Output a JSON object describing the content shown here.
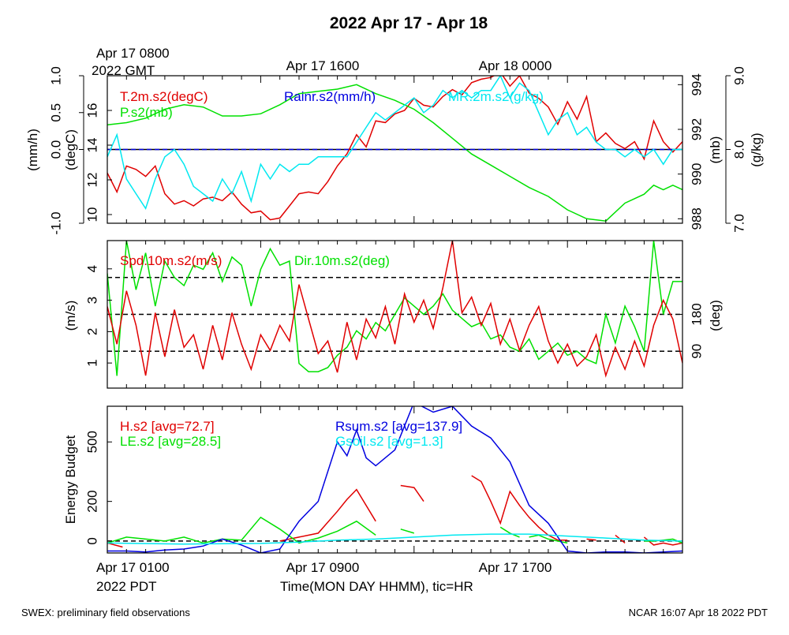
{
  "title": "2022 Apr 17 - Apr 18",
  "colors": {
    "red": "#e00000",
    "green": "#00e000",
    "blue": "#0000e0",
    "cyan": "#00e8f0",
    "black": "#000000"
  },
  "top_time_labels": [
    {
      "lines": [
        "Apr 17 0800",
        "2022 GMT"
      ]
    },
    {
      "lines": [
        "Apr 17 1600"
      ]
    },
    {
      "lines": [
        "Apr 18 0000"
      ]
    }
  ],
  "bottom_time_labels": [
    {
      "lines": [
        "Apr 17 0100",
        "2022 PDT"
      ]
    },
    {
      "lines": [
        "Apr 17 0900"
      ]
    },
    {
      "lines": [
        "Apr 17 1700"
      ]
    }
  ],
  "xaxis_title": "Time(MON DAY HHMM), tic=HR",
  "footer_left": "SWEX: preliminary field observations",
  "footer_right": "NCAR 16:07 Apr 18 2022 PDT",
  "chart_data": [
    {
      "type": "line",
      "panel": "thermo",
      "x_unit": "hours since Apr 17 0100 PDT",
      "xlim": [
        0,
        30
      ],
      "axes": {
        "rain": {
          "label": "(mm/h)",
          "ticks": [
            "-1.0",
            "0.0",
            "0.5",
            "1.0"
          ],
          "range": [
            -1,
            1
          ]
        },
        "temp": {
          "label": "(degC)",
          "ticks": [
            "10",
            "12",
            "14",
            "16"
          ],
          "range": [
            9.5,
            18
          ]
        },
        "pres": {
          "label": "(mb)",
          "ticks": [
            "988",
            "990",
            "992",
            "994"
          ],
          "range": [
            987.8,
            994.4
          ]
        },
        "mr": {
          "label": "(g/kg)",
          "ticks": [
            "7.0",
            "8.0",
            "9.0"
          ],
          "range": [
            7.0,
            9.0
          ]
        }
      },
      "series": [
        {
          "name": "T.2m.s2(degC)",
          "color": "red",
          "axis": "temp",
          "x": [
            0,
            0.5,
            1,
            1.5,
            2,
            2.5,
            3,
            3.5,
            4,
            4.5,
            5,
            5.5,
            6,
            6.5,
            7,
            7.5,
            8,
            8.5,
            9,
            9.5,
            10,
            10.5,
            11,
            11.5,
            12,
            12.5,
            13,
            13.5,
            14,
            14.5,
            15,
            15.5,
            16,
            16.5,
            17,
            17.5,
            18,
            18.5,
            19,
            19.5,
            20,
            20.5,
            21,
            21.5,
            22,
            22.5,
            23,
            23.5,
            24,
            24.5,
            25,
            25.5,
            26,
            26.5,
            27,
            27.5,
            28,
            28.5,
            29,
            29.5,
            30
          ],
          "values": [
            12.4,
            11.3,
            12.8,
            12.6,
            12.2,
            12.8,
            11.2,
            10.6,
            10.8,
            10.5,
            10.9,
            11.0,
            10.8,
            11.3,
            10.6,
            10.1,
            10.2,
            9.7,
            9.8,
            10.5,
            11.2,
            11.3,
            11.2,
            11.9,
            12.8,
            13.5,
            14.6,
            13.9,
            15.4,
            15.3,
            15.8,
            16.0,
            16.7,
            16.3,
            16.2,
            16.8,
            17.2,
            16.9,
            17.6,
            17.8,
            17.9,
            18.2,
            17.4,
            18.0,
            17.0,
            16.7,
            16.2,
            15.2,
            16.5,
            15.5,
            16.8,
            14.2,
            14.7,
            14.1,
            13.8,
            14.2,
            13.2,
            15.4,
            14.2,
            13.6,
            14.2
          ]
        },
        {
          "name": "P.s2(mb)",
          "color": "green",
          "axis": "pres",
          "x": [
            0,
            1,
            2,
            3,
            4,
            5,
            6,
            7,
            8,
            9,
            10,
            11,
            12,
            13,
            14,
            15,
            16,
            17,
            18,
            19,
            20,
            21,
            22,
            23,
            24,
            25,
            26,
            27,
            28,
            28.5,
            29,
            29.5,
            30
          ],
          "values": [
            992.2,
            992.3,
            992.5,
            992.9,
            993.1,
            993.0,
            992.6,
            992.6,
            992.7,
            993.1,
            993.6,
            993.7,
            993.8,
            994.0,
            993.6,
            993.3,
            992.9,
            992.3,
            991.6,
            990.9,
            990.4,
            989.9,
            989.4,
            989.0,
            988.4,
            988.0,
            987.9,
            988.7,
            989.1,
            989.5,
            989.3,
            989.5,
            989.3
          ]
        },
        {
          "name": "Rainr.s2(mm/h)",
          "color": "blue",
          "axis": "rain",
          "x": [
            0,
            30
          ],
          "values": [
            0.0,
            0.0
          ]
        },
        {
          "name": "MR.2m.s2(g/kg)",
          "color": "cyan",
          "axis": "mr",
          "x": [
            0,
            0.5,
            1,
            1.5,
            2,
            2.5,
            3,
            3.5,
            4,
            4.5,
            5,
            5.5,
            6,
            6.5,
            7,
            7.5,
            8,
            8.5,
            9,
            9.5,
            10,
            10.5,
            11,
            11.5,
            12,
            12.5,
            13,
            13.5,
            14,
            14.5,
            15,
            15.5,
            16,
            16.5,
            17,
            17.5,
            18,
            18.5,
            19,
            19.5,
            20,
            20.5,
            21,
            21.5,
            22,
            22.5,
            23,
            23.5,
            24,
            24.5,
            25,
            25.5,
            26,
            26.5,
            27,
            27.5,
            28,
            28.5,
            29,
            29.5,
            30
          ],
          "values": [
            7.9,
            8.2,
            7.6,
            7.4,
            7.2,
            7.6,
            7.9,
            8.0,
            7.8,
            7.5,
            7.4,
            7.3,
            7.6,
            7.4,
            7.7,
            7.3,
            7.8,
            7.6,
            7.8,
            7.7,
            7.8,
            7.8,
            7.9,
            7.9,
            7.9,
            7.9,
            8.1,
            8.3,
            8.5,
            8.4,
            8.5,
            8.6,
            8.7,
            8.5,
            8.6,
            8.8,
            8.7,
            8.8,
            8.7,
            8.8,
            8.8,
            9.0,
            8.7,
            8.9,
            8.8,
            8.5,
            8.2,
            8.4,
            8.5,
            8.2,
            8.3,
            8.1,
            8.0,
            8.0,
            7.9,
            8.0,
            7.9,
            8.0,
            7.8,
            8.0,
            8.0
          ]
        }
      ]
    },
    {
      "type": "line",
      "panel": "wind",
      "x_unit": "hours since Apr 17 0100 PDT",
      "xlim": [
        0,
        30
      ],
      "axes": {
        "spd": {
          "label": "(m/s)",
          "ticks": [
            "1",
            "2",
            "3",
            "4"
          ],
          "range": [
            0.2,
            4.9
          ]
        },
        "dir": {
          "label": "(deg)",
          "ticks": [
            "90",
            "180"
          ],
          "range": [
            0,
            360
          ]
        }
      },
      "reference_lines_deg": [
        90,
        180,
        270
      ],
      "series": [
        {
          "name": "Spd.10m.s2(m/s)",
          "color": "red",
          "axis": "spd",
          "x": [
            0,
            0.5,
            1,
            1.5,
            2,
            2.5,
            3,
            3.5,
            4,
            4.5,
            5,
            5.5,
            6,
            6.5,
            7,
            7.5,
            8,
            8.5,
            9,
            9.5,
            10,
            10.5,
            11,
            11.5,
            12,
            12.5,
            13,
            13.5,
            14,
            14.5,
            15,
            15.5,
            16,
            16.5,
            17,
            17.5,
            18,
            18.5,
            19,
            19.5,
            20,
            20.5,
            21,
            21.5,
            22,
            22.5,
            23,
            23.5,
            24,
            24.5,
            25,
            25.5,
            26,
            26.5,
            27,
            27.5,
            28,
            28.5,
            29,
            29.5,
            30
          ],
          "values": [
            2.8,
            1.6,
            3.3,
            2.2,
            0.6,
            2.6,
            1.2,
            2.7,
            1.5,
            1.9,
            0.8,
            2.2,
            1.1,
            2.6,
            1.6,
            0.8,
            1.9,
            1.4,
            2.2,
            1.7,
            3.5,
            2.4,
            1.3,
            1.7,
            0.7,
            2.3,
            1.1,
            2.4,
            1.8,
            2.8,
            1.6,
            3.2,
            2.3,
            3.0,
            2.1,
            3.4,
            4.9,
            2.6,
            3.1,
            2.2,
            2.9,
            1.6,
            2.4,
            1.4,
            2.2,
            2.8,
            1.7,
            1.0,
            1.6,
            0.9,
            1.2,
            1.9,
            0.6,
            1.5,
            0.8,
            1.7,
            0.9,
            2.2,
            3.0,
            2.4,
            1.0
          ]
        },
        {
          "name": "Dir.10m.s2(deg)",
          "color": "green",
          "axis": "dir",
          "x": [
            0,
            0.5,
            1,
            1.5,
            2,
            2.5,
            3,
            3.5,
            4,
            4.5,
            5,
            5.5,
            6,
            6.5,
            7,
            7.5,
            8,
            8.5,
            9,
            9.5,
            10,
            10.5,
            11,
            11.5,
            12,
            12.5,
            13,
            13.5,
            14,
            14.5,
            15,
            15.5,
            16,
            16.5,
            17,
            17.5,
            18,
            18.5,
            19,
            19.5,
            20,
            20.5,
            21,
            21.5,
            22,
            22.5,
            23,
            23.5,
            24,
            24.5,
            25,
            25.5,
            26,
            26.5,
            27,
            27.5,
            28,
            28.5,
            29,
            29.5,
            30
          ],
          "values": [
            280,
            30,
            360,
            240,
            330,
            200,
            310,
            270,
            250,
            300,
            290,
            330,
            260,
            320,
            300,
            200,
            290,
            340,
            300,
            310,
            60,
            40,
            40,
            50,
            80,
            100,
            140,
            120,
            160,
            140,
            180,
            220,
            200,
            180,
            200,
            230,
            190,
            170,
            150,
            160,
            120,
            130,
            100,
            90,
            120,
            70,
            90,
            110,
            80,
            90,
            70,
            60,
            180,
            110,
            200,
            150,
            90,
            360,
            180,
            260,
            260
          ]
        }
      ]
    },
    {
      "type": "line",
      "panel": "energy",
      "x_unit": "hours since Apr 17 0100 PDT",
      "xlim": [
        0,
        30
      ],
      "axes": {
        "energy": {
          "label": "Energy Budget",
          "ticks": [
            "0",
            "200",
            "500"
          ],
          "range": [
            -60,
            680
          ]
        }
      },
      "series": [
        {
          "name": "H.s2",
          "legend": "H.s2 [avg=72.7]",
          "color": "red",
          "segments": [
            {
              "x": [
                0,
                0.8
              ],
              "values": [
                -10,
                -30
              ]
            },
            {
              "x": [
                9,
                10,
                11,
                12,
                12.5,
                13,
                14
              ],
              "values": [
                0,
                20,
                40,
                150,
                210,
                260,
                100
              ]
            },
            {
              "x": [
                15.3,
                16,
                16.5
              ],
              "values": [
                280,
                270,
                200
              ]
            },
            {
              "x": [
                19,
                19.5,
                20,
                20.5,
                21,
                21.5,
                22,
                22.5,
                23,
                23.5,
                24
              ],
              "values": [
                330,
                300,
                200,
                90,
                250,
                180,
                120,
                70,
                30,
                5,
                5
              ]
            },
            {
              "x": [
                25,
                25.5
              ],
              "values": [
                10,
                5
              ]
            },
            {
              "x": [
                26.5,
                27
              ],
              "values": [
                30,
                -10
              ]
            },
            {
              "x": [
                28,
                28.5,
                29,
                29.5,
                30
              ],
              "values": [
                20,
                -20,
                -10,
                -20,
                -10
              ]
            }
          ]
        },
        {
          "name": "LE.s2",
          "legend": "LE.s2 [avg=28.5]",
          "color": "green",
          "segments": [
            {
              "x": [
                0,
                1,
                2,
                3,
                4,
                5,
                6,
                7,
                8,
                9,
                10,
                11,
                12,
                13,
                14
              ],
              "values": [
                -10,
                20,
                10,
                0,
                20,
                -10,
                10,
                5,
                120,
                60,
                -10,
                15,
                50,
                100,
                30
              ]
            },
            {
              "x": [
                15.3,
                16
              ],
              "values": [
                60,
                40
              ]
            },
            {
              "x": [
                20.5,
                21,
                21.5
              ],
              "values": [
                70,
                40,
                20
              ]
            },
            {
              "x": [
                22,
                22.5,
                23,
                23.5,
                24
              ],
              "values": [
                20,
                30,
                10,
                0,
                -10
              ]
            },
            {
              "x": [
                28,
                28.5,
                29,
                29.5,
                30
              ],
              "values": [
                0,
                0,
                5,
                10,
                -10
              ]
            }
          ]
        },
        {
          "name": "Rsum.s2",
          "legend": "Rsum.s2 [avg=137.9]",
          "color": "blue",
          "x": [
            0,
            1,
            2,
            3,
            4,
            5,
            6,
            7,
            8,
            9,
            10,
            11,
            12,
            12.5,
            13,
            13.5,
            14,
            15,
            16,
            17,
            18,
            19,
            20,
            21,
            22,
            23,
            24,
            25,
            26,
            27,
            28,
            29,
            30
          ],
          "values": [
            -50,
            -50,
            -55,
            -45,
            -40,
            -25,
            10,
            -20,
            -60,
            -40,
            100,
            200,
            500,
            430,
            560,
            420,
            380,
            460,
            700,
            650,
            680,
            580,
            520,
            400,
            180,
            90,
            -50,
            -60,
            -55,
            -55,
            -60,
            -55,
            -50
          ]
        },
        {
          "name": "Gsoil.s2",
          "legend": "Gsoil.s2 [avg=1.3]",
          "color": "cyan",
          "x": [
            0,
            4,
            8,
            10,
            12,
            14,
            16,
            18,
            20,
            22,
            24,
            26,
            28,
            30
          ],
          "values": [
            -10,
            -15,
            -12,
            -5,
            5,
            10,
            20,
            30,
            35,
            35,
            25,
            15,
            5,
            0
          ]
        }
      ]
    }
  ]
}
